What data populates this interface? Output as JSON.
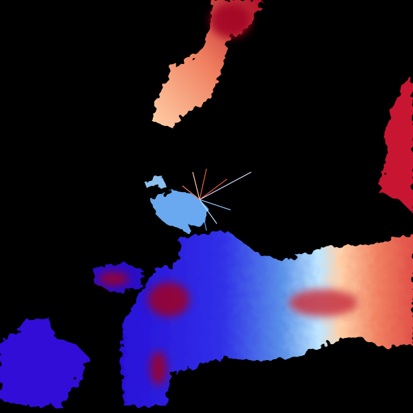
{
  "radar": {
    "background_color": "#000000",
    "palette": {
      "inbound_strong": "#2a10d8",
      "inbound_mid": "#3c3cf0",
      "inbound_light": "#6aa8f0",
      "inbound_pale": "#bfe6ff",
      "outbound_pale": "#ffd0a8",
      "outbound_light": "#f8a070",
      "outbound_mid": "#e0504a",
      "outbound_strong": "#b0102a",
      "folded": "#a00020"
    }
  }
}
